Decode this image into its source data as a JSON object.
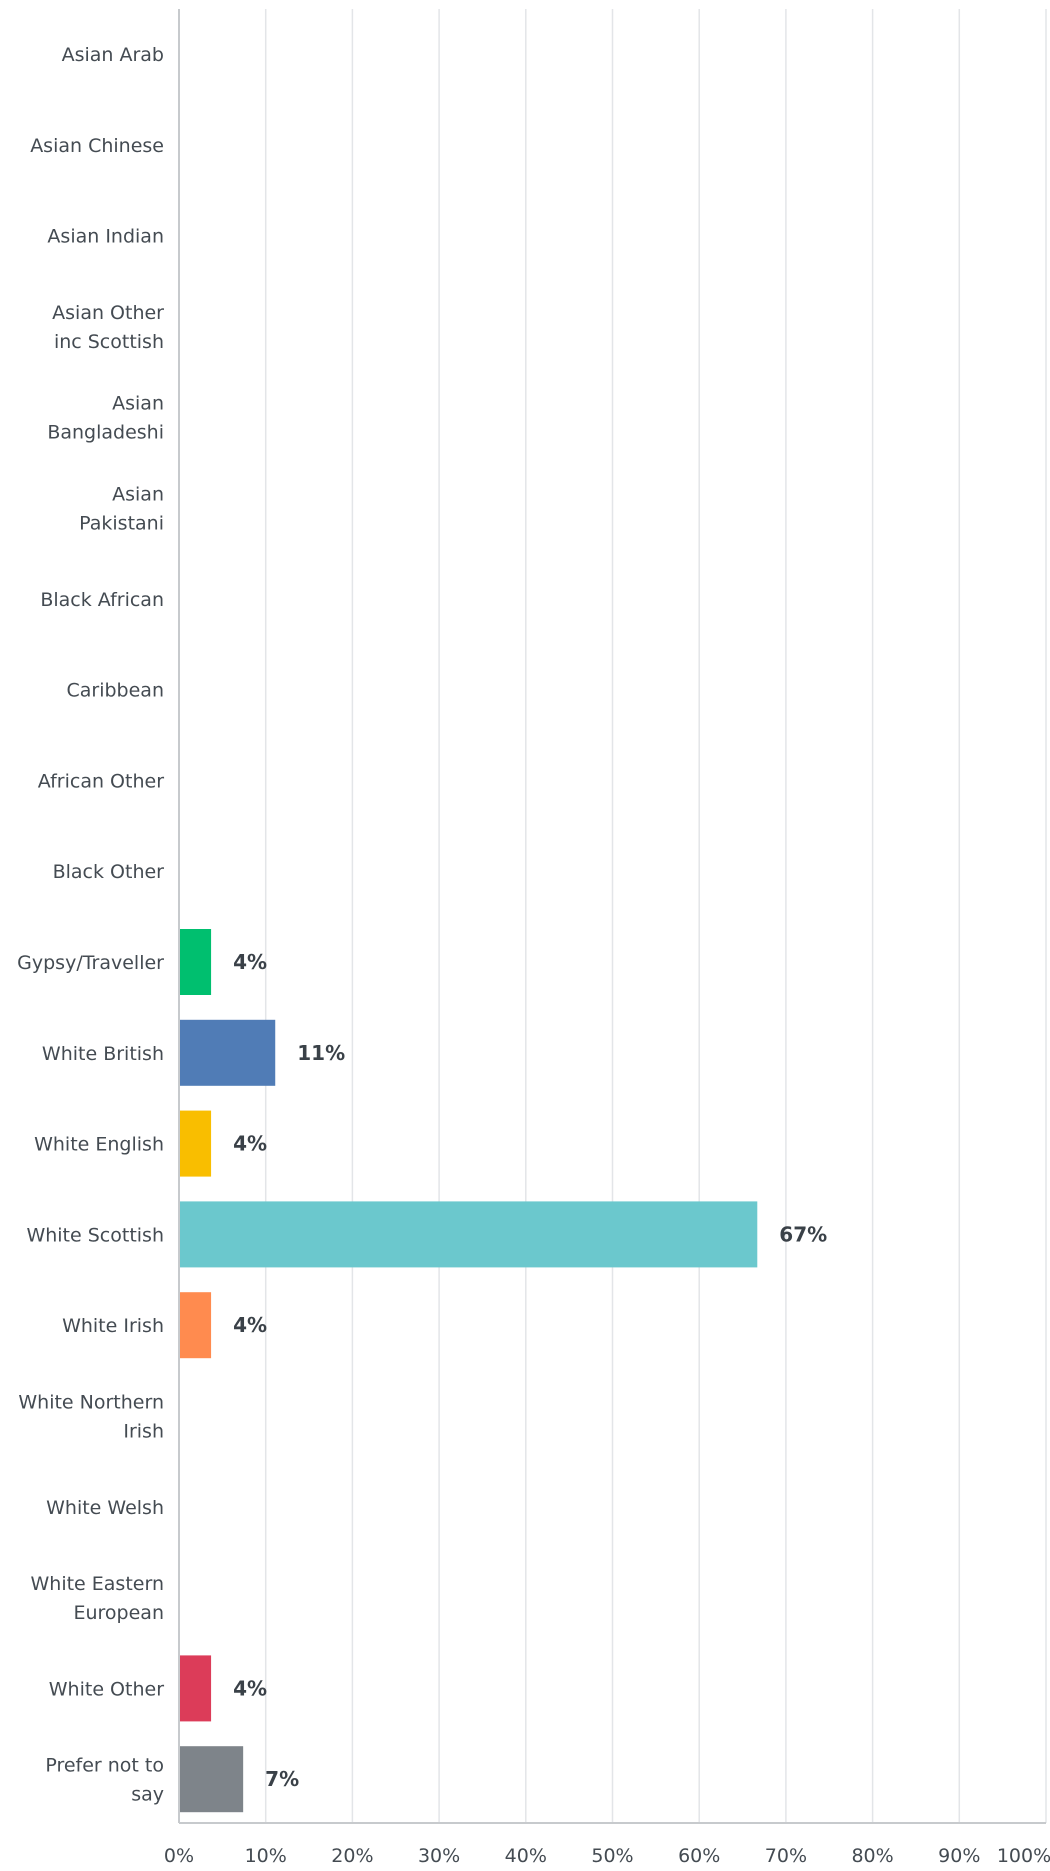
{
  "chart_data": {
    "type": "bar",
    "orientation": "horizontal",
    "categories": [
      "Asian Arab",
      "Asian Chinese",
      "Asian Indian",
      "Asian Other inc Scottish",
      "Asian Bangladeshi",
      "Asian Pakistani",
      "Black African",
      "Caribbean",
      "African Other",
      "Black Other",
      "Gypsy/Traveller",
      "White British",
      "White English",
      "White Scottish",
      "White Irish",
      "White Northern Irish",
      "White Welsh",
      "White Eastern European",
      "White Other",
      "Prefer not to say"
    ],
    "values": [
      0,
      0,
      0,
      0,
      0,
      0,
      0,
      0,
      0,
      0,
      3.7,
      11.1,
      3.7,
      66.7,
      3.7,
      0,
      0,
      0,
      3.7,
      7.4
    ],
    "value_labels": [
      "",
      "",
      "",
      "",
      "",
      "",
      "",
      "",
      "",
      "",
      "4%",
      "11%",
      "4%",
      "67%",
      "4%",
      "",
      "",
      "",
      "4%",
      "7%"
    ],
    "colors": [
      "#00bf6f",
      "#507cb6",
      "#f9be00",
      "#6bc8cd",
      "#ff8b4f",
      "#7f6aad",
      "#585a95",
      "#d25f90",
      "#dc3c59",
      "#7e848a",
      "#00bf6f",
      "#507cb6",
      "#f9be00",
      "#6bc8cd",
      "#ff8b4f",
      "#7f6aad",
      "#585a95",
      "#d25f90",
      "#dc3c59",
      "#7e848a"
    ],
    "x_ticks": [
      "0%",
      "10%",
      "20%",
      "30%",
      "40%",
      "50%",
      "60%",
      "70%",
      "80%",
      "90%",
      "100%"
    ],
    "xlim": [
      0,
      100
    ],
    "grid": true,
    "title": "",
    "xlabel": "",
    "ylabel": ""
  }
}
